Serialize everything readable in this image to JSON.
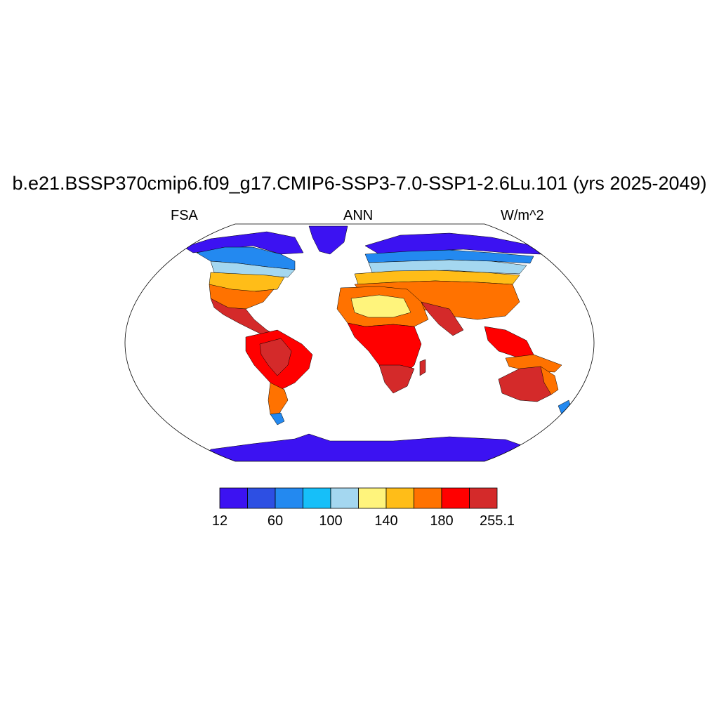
{
  "header": {
    "title": "b.e21.BSSP370cmip6.f09_g17.CMIP6-SSP3-7.0-SSP1-2.6Lu.101 (yrs 2025-2049)",
    "left": "FSA",
    "center": "ANN",
    "right": "W/m^2"
  },
  "colorbar": {
    "colors": [
      "#3c12f2",
      "#2d4fe3",
      "#2389f0",
      "#16bff9",
      "#a4d7f0",
      "#fff47c",
      "#ffbd18",
      "#ff7200",
      "#ff0000",
      "#d42a2a"
    ],
    "tick_labels": [
      "12",
      "60",
      "100",
      "140",
      "180",
      "255.1"
    ]
  },
  "map": {
    "projection": "robinson",
    "land_colors": {
      "ice": "#3c12f2",
      "polar": "#2d4fe3",
      "subpolar": "#2389f0",
      "boreal": "#16bff9",
      "cool": "#a4d7f0",
      "temperate": "#fff47c",
      "warm": "#ffbd18",
      "hot": "#ff7200",
      "tropical": "#ff0000",
      "desert": "#d42a2a"
    }
  }
}
